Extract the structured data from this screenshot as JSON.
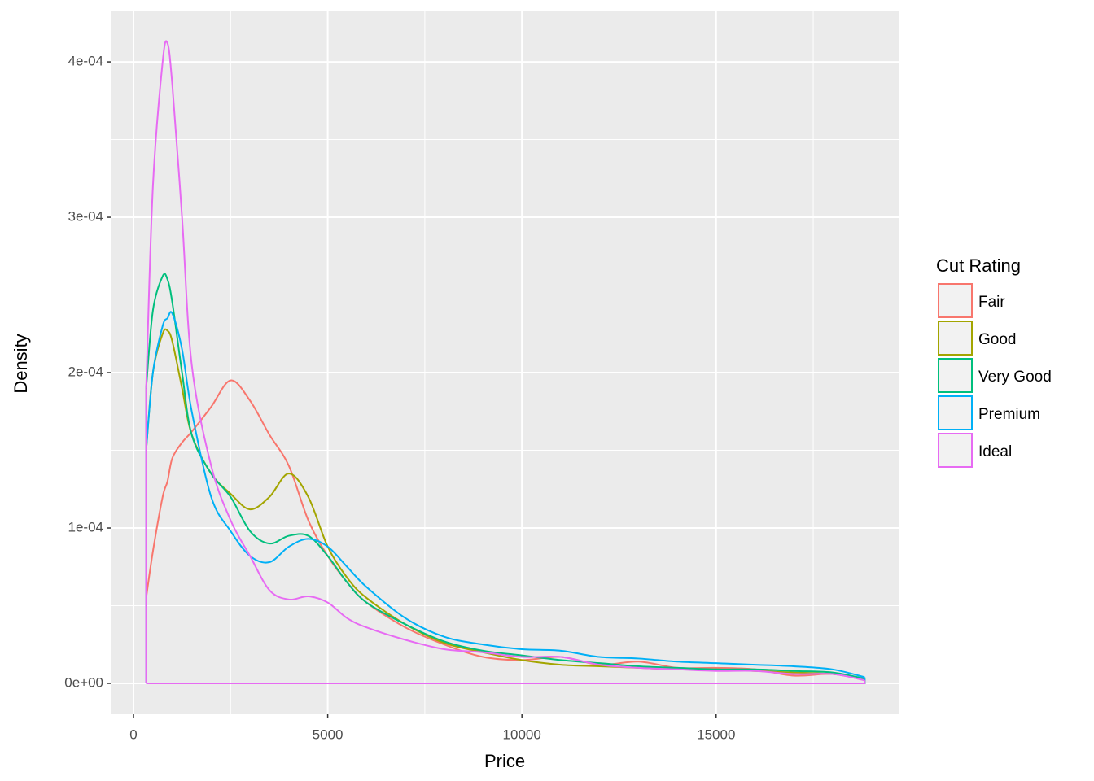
{
  "chart_data": {
    "type": "density",
    "xlabel": "Price",
    "ylabel": "Density",
    "legend_title": "Cut Rating",
    "legend_position": "right",
    "x": [
      326,
      500,
      750,
      875,
      1000,
      1250,
      1500,
      2000,
      2500,
      3000,
      3500,
      4000,
      4500,
      5000,
      5500,
      6000,
      7000,
      8000,
      9000,
      10000,
      11000,
      12000,
      13000,
      14000,
      15000,
      16000,
      17000,
      18000,
      18823
    ],
    "series": [
      {
        "name": "Fair",
        "color": "#f8766d",
        "values": [
          5.5e-05,
          8.5e-05,
          0.00012,
          0.00013,
          0.000145,
          0.000155,
          0.000162,
          0.000178,
          0.000195,
          0.000182,
          0.00016,
          0.00014,
          0.000105,
          8.2e-05,
          6.5e-05,
          5.2e-05,
          3.6e-05,
          2.5e-05,
          1.7e-05,
          1.5e-05,
          1.7e-05,
          1.2e-05,
          1.4e-05,
          1e-05,
          1e-05,
          9e-06,
          5e-06,
          6e-06,
          2e-06
        ]
      },
      {
        "name": "Good",
        "color": "#a3a500",
        "values": [
          0.00015,
          0.0002,
          0.000225,
          0.000227,
          0.00022,
          0.00019,
          0.00016,
          0.000135,
          0.000122,
          0.000112,
          0.00012,
          0.000135,
          0.00012,
          8.8e-05,
          6.8e-05,
          5.5e-05,
          3.8e-05,
          2.6e-05,
          2e-05,
          1.5e-05,
          1.2e-05,
          1.1e-05,
          1e-05,
          9e-06,
          9e-06,
          8e-06,
          7e-06,
          6e-06,
          3e-06
        ]
      },
      {
        "name": "Very Good",
        "color": "#00bf7d",
        "values": [
          0.00019,
          0.00024,
          0.000262,
          0.00026,
          0.000245,
          0.0002,
          0.00016,
          0.000135,
          0.00012,
          9.8e-05,
          9e-05,
          9.5e-05,
          9.5e-05,
          8.2e-05,
          6.5e-05,
          5.2e-05,
          3.8e-05,
          2.7e-05,
          2.1e-05,
          1.8e-05,
          1.5e-05,
          1.3e-05,
          1.1e-05,
          1e-05,
          9e-06,
          9e-06,
          8e-06,
          7e-06,
          3e-06
        ]
      },
      {
        "name": "Premium",
        "color": "#00b0f6",
        "values": [
          0.00015,
          0.0002,
          0.00023,
          0.000235,
          0.000238,
          0.000215,
          0.000175,
          0.00012,
          9.8e-05,
          8.2e-05,
          7.8e-05,
          8.8e-05,
          9.3e-05,
          8.8e-05,
          7.5e-05,
          6.2e-05,
          4.2e-05,
          3e-05,
          2.5e-05,
          2.2e-05,
          2.1e-05,
          1.7e-05,
          1.6e-05,
          1.4e-05,
          1.3e-05,
          1.2e-05,
          1.1e-05,
          9e-06,
          4e-06
        ]
      },
      {
        "name": "Ideal",
        "color": "#e76bf3",
        "values": [
          0.00019,
          0.00032,
          0.0004,
          0.000412,
          0.000385,
          0.0003,
          0.000205,
          0.00014,
          0.000105,
          8.2e-05,
          6e-05,
          5.4e-05,
          5.6e-05,
          5.2e-05,
          4.2e-05,
          3.6e-05,
          2.8e-05,
          2.2e-05,
          2e-05,
          1.7e-05,
          1.7e-05,
          1.2e-05,
          1e-05,
          9e-06,
          8e-06,
          8e-06,
          6e-06,
          6e-06,
          2e-06
        ]
      }
    ],
    "xlim": [
      -587,
      19720
    ],
    "xticks": [
      0,
      5000,
      10000,
      15000
    ],
    "x_minor_ticks": [
      2500,
      7500,
      12500,
      17500
    ],
    "ylim": [
      -1.99e-05,
      0.0004325
    ],
    "yticks": [
      {
        "value": 0,
        "label": "0e+00"
      },
      {
        "value": 0.0001,
        "label": "1e-04"
      },
      {
        "value": 0.0002,
        "label": "2e-04"
      },
      {
        "value": 0.0003,
        "label": "3e-04"
      },
      {
        "value": 0.0004,
        "label": "4e-04"
      }
    ],
    "y_minor_ticks": [
      5e-05,
      0.00015,
      0.00025,
      0.00035
    ],
    "grid": true,
    "panel_color": "#ebebeb"
  }
}
